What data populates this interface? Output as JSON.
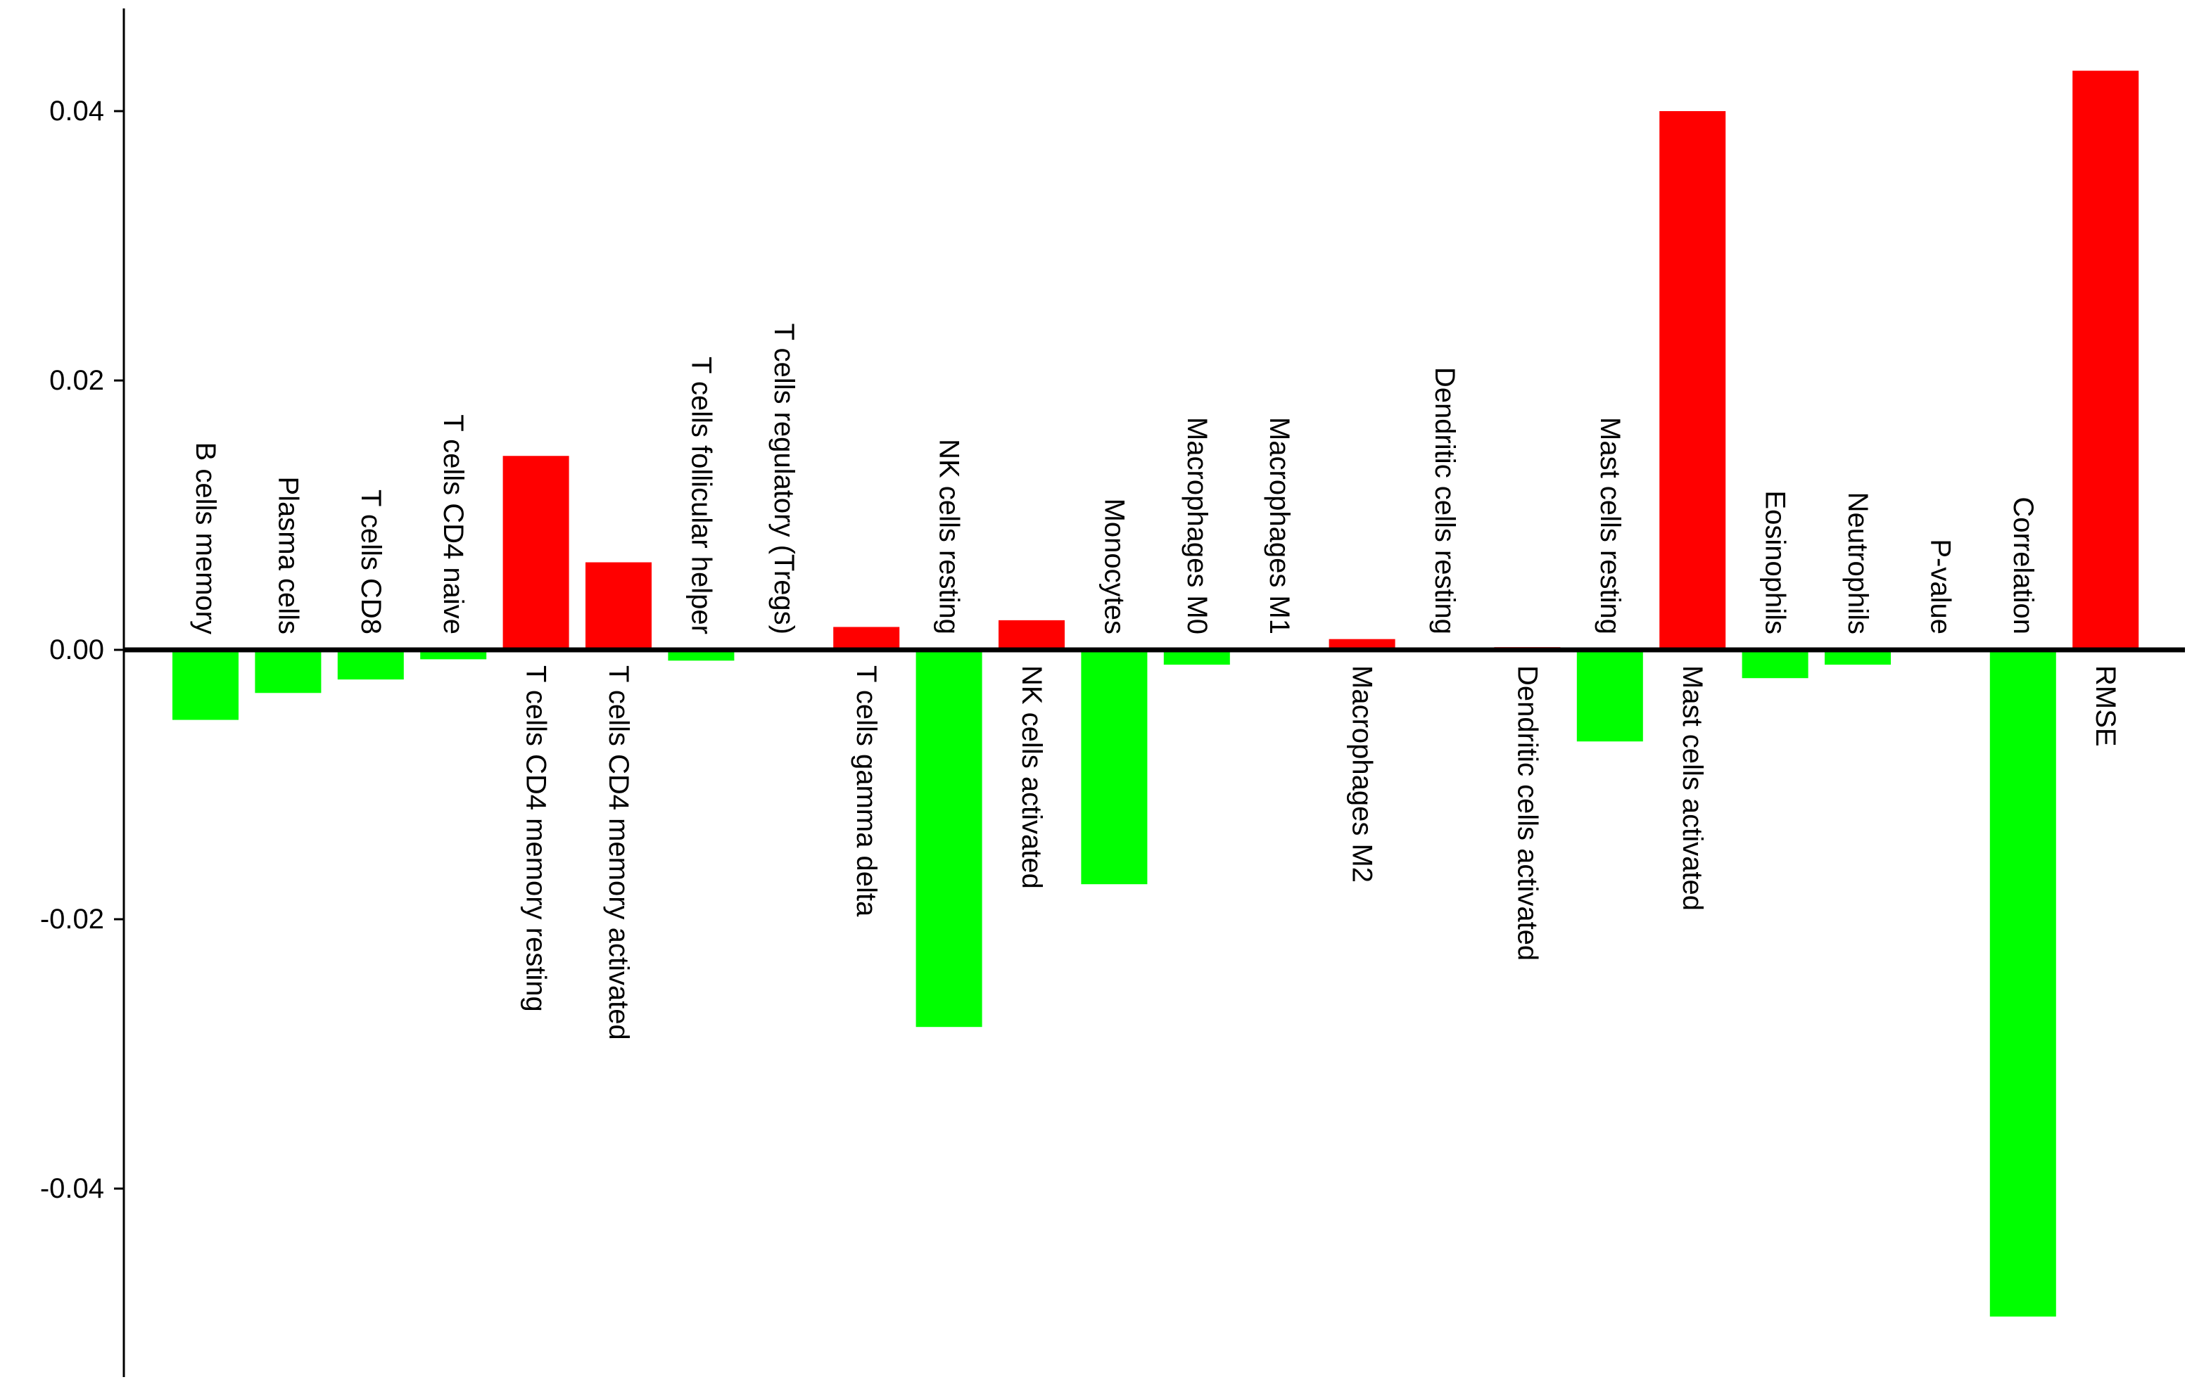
{
  "chart_data": {
    "type": "bar",
    "title": "",
    "xlabel": "",
    "ylabel": "",
    "ylim": [
      -0.054,
      0.047
    ],
    "yticks": [
      "0.04",
      "0.02",
      "0.00",
      "-0.02",
      "-0.04"
    ],
    "ytick_values": [
      0.04,
      0.02,
      0.0,
      -0.02,
      -0.04
    ],
    "grid": false,
    "legend": "none",
    "colors": {
      "positive": "#ff0000",
      "negative": "#00ff00",
      "axis": "#000000"
    },
    "categories": [
      "B cells memory",
      "Plasma cells",
      "T cells CD8",
      "T cells CD4 naive",
      "T cells CD4 memory resting",
      "T cells CD4 memory activated",
      "T cells follicular helper",
      "T cells regulatory (Tregs)",
      "T cells gamma delta",
      "NK cells resting",
      "NK cells activated",
      "Monocytes",
      "Macrophages M0",
      "Macrophages M1",
      "Macrophages M2",
      "Dendritic cells resting",
      "Dendritic cells activated",
      "Mast cells resting",
      "Mast cells activated",
      "Eosinophils",
      "Neutrophils",
      "P-value",
      "Correlation",
      "RMSE"
    ],
    "values": [
      -0.0052,
      -0.0032,
      -0.0022,
      -0.0007,
      0.0144,
      0.0065,
      -0.0008,
      0.0,
      0.0017,
      -0.028,
      0.0022,
      -0.0174,
      -0.0011,
      0.0,
      0.0008,
      0.0,
      0.0002,
      -0.0068,
      0.04,
      -0.0021,
      -0.0011,
      0.0,
      -0.0495,
      0.043
    ]
  }
}
